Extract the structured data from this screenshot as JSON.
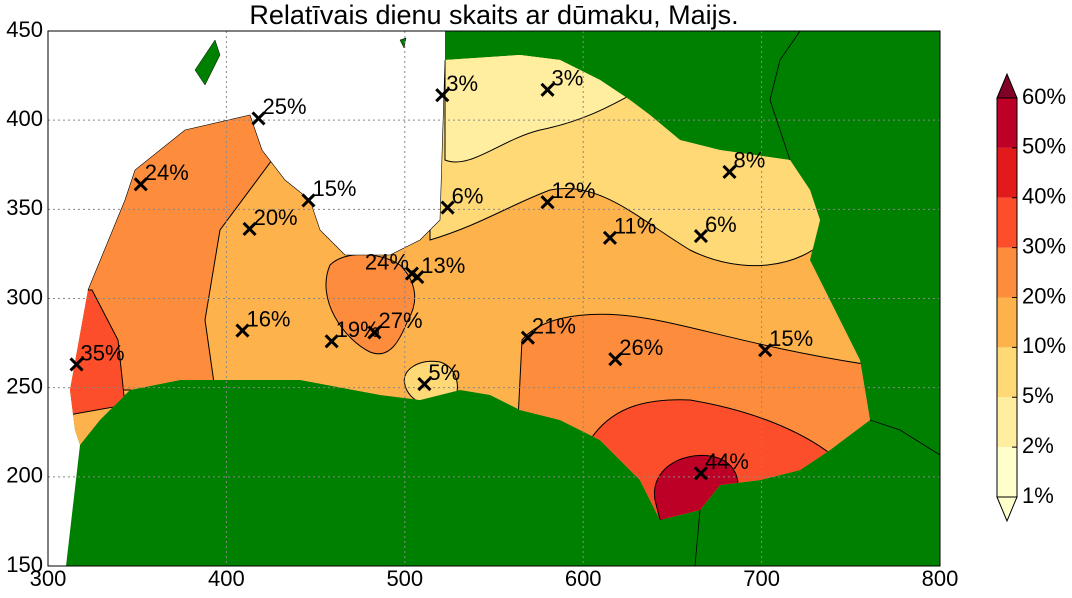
{
  "chart_data": {
    "type": "scatter",
    "title": "Relatīvais dienu skaits ar dūmaku, Maijs.",
    "xlim": [
      300,
      800
    ],
    "ylim": [
      150,
      450
    ],
    "xticks": [
      300,
      400,
      500,
      600,
      700,
      800
    ],
    "yticks": [
      150,
      200,
      250,
      300,
      350,
      400,
      450
    ],
    "grid": true,
    "series": [
      {
        "marker": "x",
        "color": "#000000",
        "x": [
          316,
          352,
          418,
          446,
          413,
          409,
          459,
          483,
          504,
          507,
          521,
          580,
          524,
          580,
          615,
          666,
          682,
          569,
          618,
          702,
          511,
          666
        ],
        "y": [
          263,
          364,
          401,
          355,
          339,
          282,
          276,
          281,
          314,
          312,
          414,
          417,
          351,
          354,
          334,
          335,
          371,
          278,
          266,
          271,
          252,
          202
        ],
        "labels": [
          "35%",
          "24%",
          "25%",
          "15%",
          "20%",
          "16%",
          "19%",
          "27%",
          "24%",
          "13%",
          "3%",
          "3%",
          "6%",
          "12%",
          "11%",
          "6%",
          "8%",
          "21%",
          "26%",
          "15%",
          "5%",
          "44%"
        ]
      }
    ],
    "colorbar": {
      "extend": "both",
      "ticks": [
        {
          "value": 1,
          "label": "1%"
        },
        {
          "value": 2,
          "label": "2%"
        },
        {
          "value": 5,
          "label": "5%"
        },
        {
          "value": 10,
          "label": "10%"
        },
        {
          "value": 20,
          "label": "20%"
        },
        {
          "value": 30,
          "label": "30%"
        },
        {
          "value": 40,
          "label": "40%"
        },
        {
          "value": 50,
          "label": "50%"
        },
        {
          "value": 60,
          "label": "60%"
        }
      ],
      "colors": [
        "#ffffcc",
        "#ffeda0",
        "#fed976",
        "#feb24c",
        "#fd8d3c",
        "#fc4e2a",
        "#e31a1c",
        "#bd0026"
      ],
      "under_color": "#ffffcc",
      "over_color": "#800026"
    }
  }
}
